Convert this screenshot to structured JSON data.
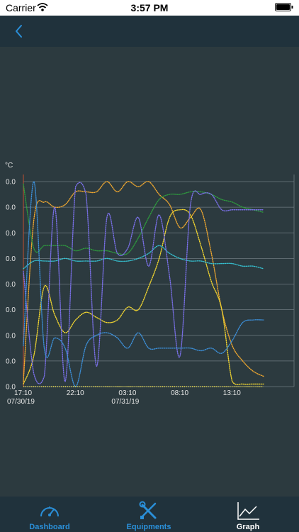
{
  "status_bar": {
    "carrier": "Carrier",
    "time": "3:57 PM"
  },
  "nav": {
    "back_icon": "chevron-left-icon"
  },
  "tabs": [
    {
      "label": "Dashboard",
      "icon": "gauge-icon",
      "selected": false
    },
    {
      "label": "Equipments",
      "icon": "wrench-screwdriver-icon",
      "selected": false
    },
    {
      "label": "Graph",
      "icon": "line-graph-icon",
      "selected": true
    }
  ],
  "colors": {
    "accent": "#2a8fd8",
    "nav_background": "#20323c",
    "chart_background": "#2c3a3f",
    "grid": "#6e7a80",
    "axis_text": "#e6e6e6"
  },
  "chart_data": {
    "type": "line",
    "unit": "°C",
    "y_tick_labels": [
      "0.0",
      "0.0",
      "0.0",
      "0.0",
      "0.0",
      "0.0",
      "0.0",
      "0.0",
      "0.0"
    ],
    "ylim": [
      0,
      8
    ],
    "x_tick_labels": [
      {
        "time": "17:10",
        "date": "07/30/19"
      },
      {
        "time": "22:10",
        "date": ""
      },
      {
        "time": "03:10",
        "date": "07/31/19"
      },
      {
        "time": "08:10",
        "date": ""
      },
      {
        "time": "13:10",
        "date": ""
      }
    ],
    "x": [
      "17:10",
      "18:10",
      "19:10",
      "20:10",
      "21:10",
      "22:10",
      "23:10",
      "00:10",
      "01:10",
      "02:10",
      "03:10",
      "04:10",
      "05:10",
      "06:10",
      "07:10",
      "08:10",
      "09:10",
      "10:10",
      "11:10",
      "12:10",
      "13:10",
      "14:10",
      "15:10",
      "16:10"
    ],
    "grid": true,
    "series": [
      {
        "color": "#f0a830",
        "values": [
          0.2,
          6.5,
          7.2,
          7.0,
          7.1,
          7.6,
          7.6,
          7.6,
          8.0,
          7.6,
          8.0,
          7.8,
          8.0,
          7.5,
          7.1,
          6.2,
          6.6,
          6.9,
          5.2,
          3.0,
          1.6,
          1.0,
          0.6,
          0.4
        ]
      },
      {
        "color": "#f2d630",
        "values": [
          0.1,
          1.2,
          3.9,
          2.8,
          2.1,
          2.6,
          2.9,
          2.7,
          2.5,
          2.6,
          3.1,
          3.0,
          3.9,
          5.0,
          6.6,
          6.9,
          6.7,
          5.5,
          4.1,
          3.0,
          0.2,
          0.1,
          0.1,
          0.1
        ]
      },
      {
        "color": "#2e9a3e",
        "values": [
          7.9,
          5.4,
          5.5,
          5.5,
          5.5,
          5.3,
          5.4,
          5.3,
          5.3,
          5.2,
          5.2,
          5.8,
          6.6,
          7.3,
          7.5,
          7.5,
          7.6,
          7.6,
          7.5,
          7.3,
          7.2,
          7.0,
          6.9,
          6.8
        ]
      },
      {
        "color": "#36c0d0",
        "values": [
          4.6,
          4.9,
          4.9,
          4.9,
          5.0,
          4.9,
          4.9,
          4.9,
          5.0,
          4.9,
          4.9,
          5.0,
          5.2,
          5.5,
          5.2,
          5.0,
          4.9,
          4.9,
          4.8,
          4.8,
          4.8,
          4.7,
          4.7,
          4.6
        ]
      },
      {
        "color": "#7a70e8",
        "values": [
          4.5,
          0.5,
          0.4,
          7.0,
          0.2,
          7.8,
          7.5,
          0.8,
          6.6,
          5.2,
          5.4,
          6.6,
          4.7,
          6.7,
          4.3,
          1.2,
          7.1,
          7.5,
          7.5,
          6.9,
          6.9,
          6.9,
          6.9,
          6.9
        ]
      },
      {
        "color": "#3c8fd8",
        "values": [
          1.6,
          8.0,
          1.5,
          1.9,
          1.5,
          0.0,
          1.6,
          2.0,
          2.1,
          1.9,
          1.5,
          2.1,
          1.5,
          1.5,
          1.5,
          1.5,
          1.5,
          1.4,
          1.5,
          1.3,
          1.8,
          2.5,
          2.6,
          2.6
        ]
      }
    ]
  }
}
